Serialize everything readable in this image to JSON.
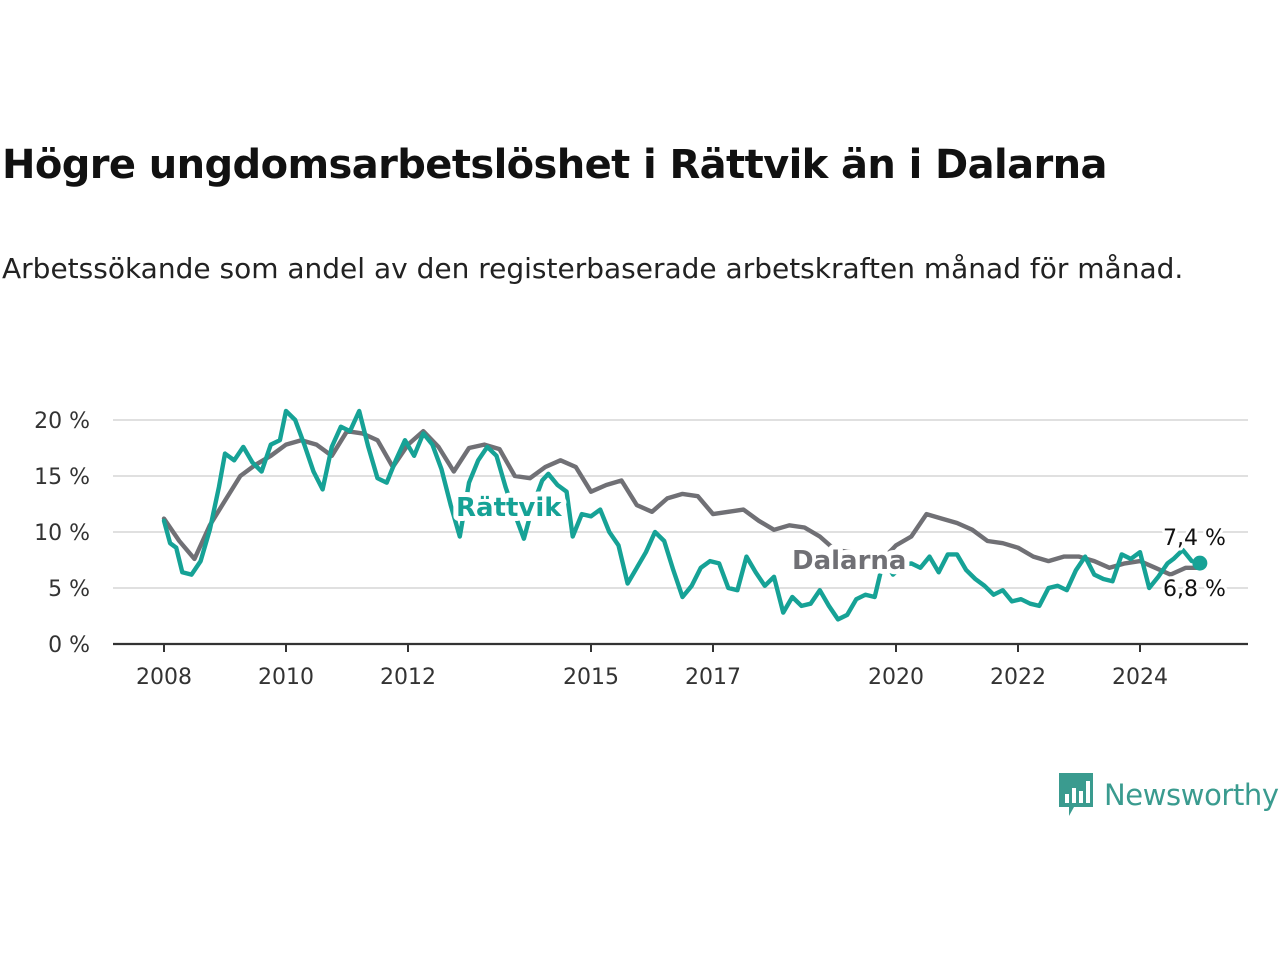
{
  "title": "Högre ungdomsarbetslöshet i Rättvik än i Dalarna",
  "subtitle": "Arbetssökande som andel av den registerbaserade arbetskraften månad för månad.",
  "brand": {
    "name": "Newsworthy",
    "icon": "chart-bubble-icon",
    "color": "#3a9b8f"
  },
  "chart_data": {
    "type": "line",
    "x_unit": "year",
    "xlim": [
      2007.6,
      2025.8
    ],
    "ylim": [
      0,
      20
    ],
    "y_ticks": [
      0,
      5,
      10,
      15,
      20
    ],
    "y_tick_labels": [
      "0 %",
      "5 %",
      "10 %",
      "15 %",
      "20 %"
    ],
    "x_ticks": [
      2008,
      2010,
      2012,
      2015,
      2017,
      2020,
      2022,
      2024
    ],
    "x_tick_labels": [
      "2008",
      "2010",
      "2012",
      "2015",
      "2017",
      "2020",
      "2022",
      "2024"
    ],
    "grid": true,
    "series": [
      {
        "name": "Dalarna",
        "color": "#707075",
        "end_label": "6,8 %",
        "points": [
          [
            2008.0,
            11.2
          ],
          [
            2008.25,
            9.2
          ],
          [
            2008.5,
            7.6
          ],
          [
            2008.75,
            10.6
          ],
          [
            2009.0,
            12.8
          ],
          [
            2009.25,
            15.0
          ],
          [
            2009.5,
            16.0
          ],
          [
            2009.75,
            16.8
          ],
          [
            2010.0,
            17.8
          ],
          [
            2010.25,
            18.2
          ],
          [
            2010.5,
            17.8
          ],
          [
            2010.75,
            16.8
          ],
          [
            2011.0,
            19.0
          ],
          [
            2011.25,
            18.8
          ],
          [
            2011.5,
            18.2
          ],
          [
            2011.75,
            15.8
          ],
          [
            2012.0,
            17.8
          ],
          [
            2012.25,
            19.0
          ],
          [
            2012.5,
            17.6
          ],
          [
            2012.75,
            15.4
          ],
          [
            2013.0,
            17.5
          ],
          [
            2013.25,
            17.8
          ],
          [
            2013.5,
            17.4
          ],
          [
            2013.75,
            15.0
          ],
          [
            2014.0,
            14.8
          ],
          [
            2014.25,
            15.8
          ],
          [
            2014.5,
            16.4
          ],
          [
            2014.75,
            15.8
          ],
          [
            2015.0,
            13.6
          ],
          [
            2015.25,
            14.2
          ],
          [
            2015.5,
            14.6
          ],
          [
            2015.75,
            12.4
          ],
          [
            2016.0,
            11.8
          ],
          [
            2016.25,
            13.0
          ],
          [
            2016.5,
            13.4
          ],
          [
            2016.75,
            13.2
          ],
          [
            2017.0,
            11.6
          ],
          [
            2017.25,
            11.8
          ],
          [
            2017.5,
            12.0
          ],
          [
            2017.75,
            11.0
          ],
          [
            2018.0,
            10.2
          ],
          [
            2018.25,
            10.6
          ],
          [
            2018.5,
            10.4
          ],
          [
            2018.75,
            9.6
          ],
          [
            2019.0,
            8.4
          ],
          [
            2019.25,
            8.2
          ],
          [
            2019.5,
            7.6
          ],
          [
            2019.75,
            7.4
          ],
          [
            2020.0,
            8.8
          ],
          [
            2020.25,
            9.6
          ],
          [
            2020.5,
            11.6
          ],
          [
            2020.75,
            11.2
          ],
          [
            2021.0,
            10.8
          ],
          [
            2021.25,
            10.2
          ],
          [
            2021.5,
            9.2
          ],
          [
            2021.75,
            9.0
          ],
          [
            2022.0,
            8.6
          ],
          [
            2022.25,
            7.8
          ],
          [
            2022.5,
            7.4
          ],
          [
            2022.75,
            7.8
          ],
          [
            2023.0,
            7.8
          ],
          [
            2023.25,
            7.4
          ],
          [
            2023.5,
            6.8
          ],
          [
            2023.75,
            7.2
          ],
          [
            2024.0,
            7.4
          ],
          [
            2024.25,
            6.8
          ],
          [
            2024.5,
            6.2
          ],
          [
            2024.75,
            6.8
          ],
          [
            2025.0,
            6.8
          ]
        ]
      },
      {
        "name": "Rättvik",
        "color": "#16a296",
        "end_label": "7,4 %",
        "points": [
          [
            2008.0,
            11.0
          ],
          [
            2008.1,
            9.0
          ],
          [
            2008.2,
            8.6
          ],
          [
            2008.3,
            6.4
          ],
          [
            2008.45,
            6.2
          ],
          [
            2008.6,
            7.4
          ],
          [
            2008.75,
            10.2
          ],
          [
            2008.9,
            14.0
          ],
          [
            2009.0,
            17.0
          ],
          [
            2009.15,
            16.4
          ],
          [
            2009.3,
            17.6
          ],
          [
            2009.45,
            16.2
          ],
          [
            2009.6,
            15.4
          ],
          [
            2009.75,
            17.8
          ],
          [
            2009.9,
            18.2
          ],
          [
            2010.0,
            20.8
          ],
          [
            2010.15,
            20.0
          ],
          [
            2010.3,
            17.8
          ],
          [
            2010.45,
            15.4
          ],
          [
            2010.6,
            13.8
          ],
          [
            2010.75,
            17.6
          ],
          [
            2010.9,
            19.4
          ],
          [
            2011.05,
            19.0
          ],
          [
            2011.2,
            20.8
          ],
          [
            2011.35,
            17.6
          ],
          [
            2011.5,
            14.8
          ],
          [
            2011.65,
            14.4
          ],
          [
            2011.8,
            16.4
          ],
          [
            2011.95,
            18.2
          ],
          [
            2012.1,
            16.8
          ],
          [
            2012.25,
            18.8
          ],
          [
            2012.4,
            17.8
          ],
          [
            2012.55,
            15.6
          ],
          [
            2012.7,
            12.4
          ],
          [
            2012.85,
            9.6
          ],
          [
            2013.0,
            14.4
          ],
          [
            2013.15,
            16.4
          ],
          [
            2013.3,
            17.6
          ],
          [
            2013.45,
            16.8
          ],
          [
            2013.6,
            14.0
          ],
          [
            2013.75,
            11.6
          ],
          [
            2013.9,
            9.4
          ],
          [
            2014.05,
            12.4
          ],
          [
            2014.2,
            14.6
          ],
          [
            2014.3,
            15.2
          ],
          [
            2014.45,
            14.2
          ],
          [
            2014.6,
            13.6
          ],
          [
            2014.7,
            9.6
          ],
          [
            2014.85,
            11.6
          ],
          [
            2015.0,
            11.4
          ],
          [
            2015.15,
            12.0
          ],
          [
            2015.3,
            10.0
          ],
          [
            2015.45,
            8.8
          ],
          [
            2015.6,
            5.4
          ],
          [
            2015.75,
            6.8
          ],
          [
            2015.9,
            8.2
          ],
          [
            2016.05,
            10.0
          ],
          [
            2016.2,
            9.2
          ],
          [
            2016.35,
            6.6
          ],
          [
            2016.5,
            4.2
          ],
          [
            2016.65,
            5.2
          ],
          [
            2016.8,
            6.8
          ],
          [
            2016.95,
            7.4
          ],
          [
            2017.1,
            7.2
          ],
          [
            2017.25,
            5.0
          ],
          [
            2017.4,
            4.8
          ],
          [
            2017.55,
            7.8
          ],
          [
            2017.7,
            6.4
          ],
          [
            2017.85,
            5.2
          ],
          [
            2018.0,
            6.0
          ],
          [
            2018.15,
            2.8
          ],
          [
            2018.3,
            4.2
          ],
          [
            2018.45,
            3.4
          ],
          [
            2018.6,
            3.6
          ],
          [
            2018.75,
            4.8
          ],
          [
            2018.9,
            3.4
          ],
          [
            2019.05,
            2.2
          ],
          [
            2019.2,
            2.6
          ],
          [
            2019.35,
            4.0
          ],
          [
            2019.5,
            4.4
          ],
          [
            2019.65,
            4.2
          ],
          [
            2019.8,
            7.6
          ],
          [
            2019.95,
            6.2
          ],
          [
            2020.1,
            7.0
          ],
          [
            2020.25,
            7.2
          ],
          [
            2020.4,
            6.8
          ],
          [
            2020.55,
            7.8
          ],
          [
            2020.7,
            6.4
          ],
          [
            2020.85,
            8.0
          ],
          [
            2021.0,
            8.0
          ],
          [
            2021.15,
            6.6
          ],
          [
            2021.3,
            5.8
          ],
          [
            2021.45,
            5.2
          ],
          [
            2021.6,
            4.4
          ],
          [
            2021.75,
            4.8
          ],
          [
            2021.9,
            3.8
          ],
          [
            2022.05,
            4.0
          ],
          [
            2022.2,
            3.6
          ],
          [
            2022.35,
            3.4
          ],
          [
            2022.5,
            5.0
          ],
          [
            2022.65,
            5.2
          ],
          [
            2022.8,
            4.8
          ],
          [
            2022.95,
            6.6
          ],
          [
            2023.1,
            7.8
          ],
          [
            2023.25,
            6.2
          ],
          [
            2023.4,
            5.8
          ],
          [
            2023.55,
            5.6
          ],
          [
            2023.7,
            8.0
          ],
          [
            2023.85,
            7.6
          ],
          [
            2024.0,
            8.2
          ],
          [
            2024.15,
            5.0
          ],
          [
            2024.3,
            6.0
          ],
          [
            2024.45,
            7.2
          ],
          [
            2024.55,
            7.6
          ],
          [
            2024.7,
            8.4
          ],
          [
            2024.85,
            7.4
          ]
        ]
      }
    ]
  }
}
